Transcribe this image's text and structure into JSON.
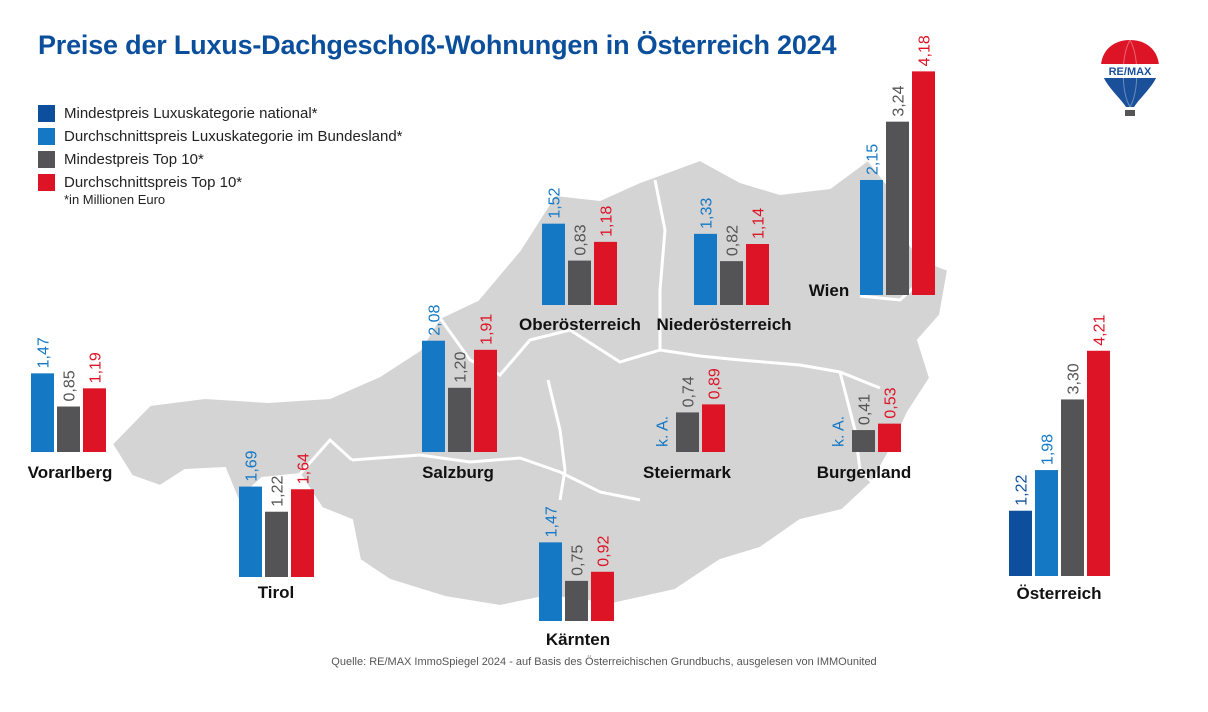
{
  "header": {
    "title": "Preise der Luxus-Dachgeschoß-Wohnungen in Österreich 2024",
    "unit_note": "*in Millionen Euro",
    "source": "Quelle: RE/MAX ImmoSpiegel 2024 - auf Basis des Österreichischen Grundbuchs, ausgelesen von IMMOunited"
  },
  "logo": {
    "text": "RE/MAX",
    "icon": "hot-air-balloon-logo"
  },
  "legend": [
    {
      "label": "Mindestpreis Luxuskategorie national*",
      "color": "#0d4f9c"
    },
    {
      "label": "Durchschnittspreis Luxuskategorie im Bundesland*",
      "color": "#1478c4"
    },
    {
      "label": "Mindestpreis Top 10*",
      "color": "#545456"
    },
    {
      "label": "Durchschnittspreis Top 10*",
      "color": "#dd1326"
    }
  ],
  "chart_data": {
    "type": "bar",
    "unit": "Mio. Euro",
    "missing_label": "k. A.",
    "series": [
      {
        "name": "Mindestpreis Luxuskategorie national*",
        "color": "#0d4f9c"
      },
      {
        "name": "Durchschnittspreis Luxuskategorie im Bundesland*",
        "color": "#1478c4"
      },
      {
        "name": "Mindestpreis Top 10*",
        "color": "#545456"
      },
      {
        "name": "Durchschnittspreis Top 10*",
        "color": "#dd1326"
      }
    ],
    "groups": [
      {
        "name": "Vorarlberg",
        "values": [
          null,
          1.47,
          0.85,
          1.19
        ],
        "labels": [
          null,
          "1,47",
          "0,85",
          "1,19"
        ]
      },
      {
        "name": "Tirol",
        "values": [
          null,
          1.69,
          1.22,
          1.64
        ],
        "labels": [
          null,
          "1,69",
          "1,22",
          "1,64"
        ]
      },
      {
        "name": "Salzburg",
        "values": [
          null,
          2.08,
          1.2,
          1.91
        ],
        "labels": [
          null,
          "2,08",
          "1,20",
          "1,91"
        ]
      },
      {
        "name": "Kärnten",
        "values": [
          null,
          1.47,
          0.75,
          0.92
        ],
        "labels": [
          null,
          "1,47",
          "0,75",
          "0,92"
        ]
      },
      {
        "name": "Oberösterreich",
        "values": [
          null,
          1.52,
          0.83,
          1.18
        ],
        "labels": [
          null,
          "1,52",
          "0,83",
          "1,18"
        ]
      },
      {
        "name": "Niederösterreich",
        "values": [
          null,
          1.33,
          0.82,
          1.14
        ],
        "labels": [
          null,
          "1,33",
          "0,82",
          "1,14"
        ]
      },
      {
        "name": "Steiermark",
        "values": [
          null,
          null,
          0.74,
          0.89
        ],
        "labels": [
          null,
          "k. A.",
          "0,74",
          "0,89"
        ]
      },
      {
        "name": "Burgenland",
        "values": [
          null,
          null,
          0.41,
          0.53
        ],
        "labels": [
          null,
          "k. A.",
          "0,41",
          "0,53"
        ]
      },
      {
        "name": "Wien",
        "values": [
          null,
          2.15,
          3.24,
          4.18
        ],
        "labels": [
          null,
          "2,15",
          "3,24",
          "4,18"
        ]
      },
      {
        "name": "Österreich",
        "values": [
          1.22,
          1.98,
          3.3,
          4.21
        ],
        "labels": [
          "1,22",
          "1,98",
          "3,30",
          "4,21"
        ]
      }
    ]
  }
}
